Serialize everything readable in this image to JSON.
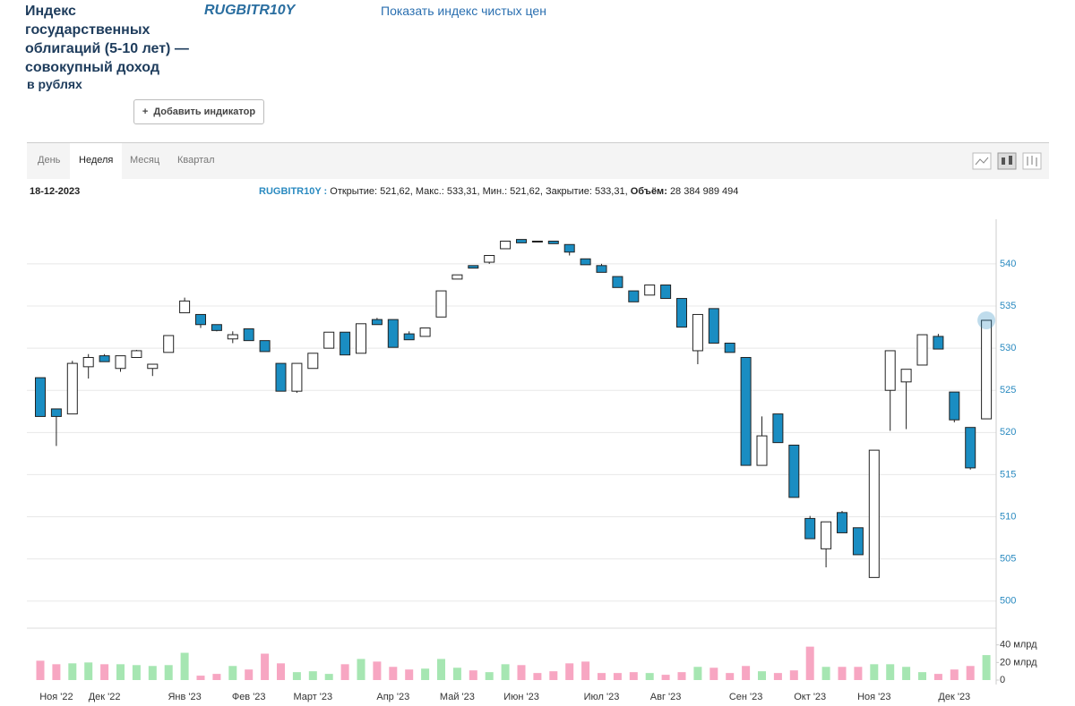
{
  "header": {
    "title": "Индекс государственных облигаций (5-10 лет) — совокупный доход",
    "subtitle": "в рублях",
    "ticker": "RUGBITR10Y",
    "link": "Показать индекс чистых цен",
    "button": "Добавить индикатор"
  },
  "tabs": [
    "День",
    "Неделя",
    "Месяц",
    "Квартал"
  ],
  "info": {
    "date": "18-12-2023",
    "ticker": "RUGBITR10Y :",
    "fields": "Открытие: 521,62, Макс.: 533,31, Мин.: 521,62, Закрытие: 533,31,",
    "volume_label": "Объём:",
    "volume": "28 384 989 494"
  },
  "chart_data": [
    {
      "type": "candlestick",
      "categories": [
        null,
        "Ноя '22",
        null,
        null,
        "Дек '22",
        null,
        null,
        null,
        null,
        "Янв '23",
        null,
        null,
        null,
        "Фев '23",
        null,
        null,
        null,
        "Март '23",
        null,
        null,
        null,
        null,
        "Апр '23",
        null,
        null,
        null,
        "Май '23",
        null,
        null,
        null,
        "Июн '23",
        null,
        null,
        null,
        null,
        "Июл '23",
        null,
        null,
        null,
        "Авг '23",
        null,
        null,
        null,
        null,
        "Сен '23",
        null,
        null,
        null,
        "Окт '23",
        null,
        null,
        null,
        "Ноя '23",
        null,
        null,
        null,
        null,
        "Дек '23",
        null,
        null
      ],
      "open": [
        526.5,
        522.8,
        522.2,
        527.8,
        529.1,
        527.6,
        528.9,
        527.6,
        529.5,
        534.2,
        534.0,
        532.8,
        531.1,
        532.3,
        530.9,
        528.2,
        524.9,
        527.6,
        530.0,
        531.9,
        529.4,
        533.4,
        533.4,
        531.7,
        531.4,
        533.7,
        538.2,
        539.8,
        540.2,
        541.8,
        542.9,
        542.7,
        542.7,
        542.3,
        540.6,
        539.8,
        538.5,
        536.8,
        536.3,
        537.5,
        535.9,
        529.7,
        534.7,
        530.6,
        528.9,
        516.1,
        522.2,
        518.5,
        509.8,
        506.2,
        510.5,
        508.7,
        502.8,
        525.0,
        526.0,
        528.0,
        531.4,
        524.8,
        520.6,
        521.62
      ],
      "high": [
        526.5,
        522.8,
        528.5,
        529.3,
        529.3,
        529.1,
        529.8,
        528.1,
        531.5,
        536.0,
        534.0,
        532.8,
        532.0,
        532.3,
        530.9,
        528.2,
        528.2,
        529.4,
        531.9,
        531.9,
        532.9,
        533.6,
        533.4,
        532.0,
        532.4,
        536.8,
        538.7,
        539.8,
        541.0,
        542.7,
        542.9,
        542.7,
        542.7,
        542.3,
        540.6,
        540.0,
        538.5,
        536.8,
        537.5,
        537.5,
        535.9,
        534.0,
        534.7,
        530.6,
        528.9,
        521.9,
        522.2,
        518.5,
        510.1,
        509.4,
        510.7,
        508.7,
        517.9,
        529.7,
        527.5,
        531.6,
        531.7,
        524.8,
        520.6,
        533.31
      ],
      "low": [
        521.9,
        518.4,
        522.2,
        526.4,
        528.4,
        527.2,
        528.9,
        526.7,
        529.5,
        534.2,
        532.4,
        532.0,
        530.6,
        530.9,
        529.6,
        524.9,
        524.7,
        527.6,
        530.0,
        529.2,
        529.4,
        532.8,
        530.1,
        531.0,
        531.4,
        533.7,
        538.2,
        539.5,
        540.0,
        541.8,
        542.5,
        542.6,
        542.4,
        541.0,
        539.9,
        539.0,
        537.2,
        535.5,
        536.3,
        535.9,
        532.5,
        528.1,
        530.6,
        529.5,
        516.1,
        516.1,
        518.8,
        512.3,
        507.4,
        504.0,
        508.1,
        505.5,
        502.8,
        520.2,
        520.4,
        528.0,
        529.9,
        521.2,
        515.6,
        521.62
      ],
      "close": [
        521.9,
        521.9,
        528.2,
        528.9,
        528.4,
        529.1,
        529.7,
        528.1,
        531.5,
        535.6,
        532.8,
        532.1,
        531.6,
        530.9,
        529.6,
        524.9,
        528.2,
        529.4,
        531.9,
        529.2,
        532.9,
        532.8,
        530.1,
        531.0,
        532.4,
        536.8,
        538.7,
        539.5,
        541.0,
        542.7,
        542.5,
        542.6,
        542.4,
        541.4,
        539.9,
        539.0,
        537.2,
        535.5,
        537.5,
        535.9,
        532.5,
        534.0,
        530.6,
        529.5,
        516.1,
        519.6,
        518.8,
        512.3,
        507.4,
        509.4,
        508.1,
        505.5,
        517.9,
        529.7,
        527.5,
        531.6,
        529.9,
        521.5,
        515.8,
        533.31
      ],
      "ylim": [
        497,
        545.3
      ],
      "yticks": [
        500,
        505,
        510,
        515,
        520,
        525,
        530,
        535,
        540
      ],
      "up_color": "#ffffff",
      "down_color": "#1a8dc2",
      "grid": true
    },
    {
      "type": "bar",
      "values": [
        22,
        18,
        19,
        20,
        18,
        18,
        17,
        16,
        17,
        31,
        5,
        7,
        16,
        12,
        30,
        19,
        9,
        10,
        7,
        18,
        24,
        21,
        15,
        12,
        13,
        24,
        14,
        11,
        9,
        18,
        17,
        8,
        10,
        19,
        21,
        8,
        8,
        9,
        8,
        6,
        9,
        15,
        14,
        8,
        16,
        10,
        8,
        11,
        38,
        15,
        15,
        15,
        18,
        18,
        15,
        9,
        7,
        12,
        16,
        28.38
      ],
      "ylim": [
        0,
        58
      ],
      "yticks": [
        0,
        {
          "value": 20,
          "label": "20 млрд"
        },
        {
          "value": 40,
          "label": "40 млрд"
        }
      ],
      "up_color": "#a6e6b2",
      "down_color": "#f7a6c2"
    }
  ]
}
